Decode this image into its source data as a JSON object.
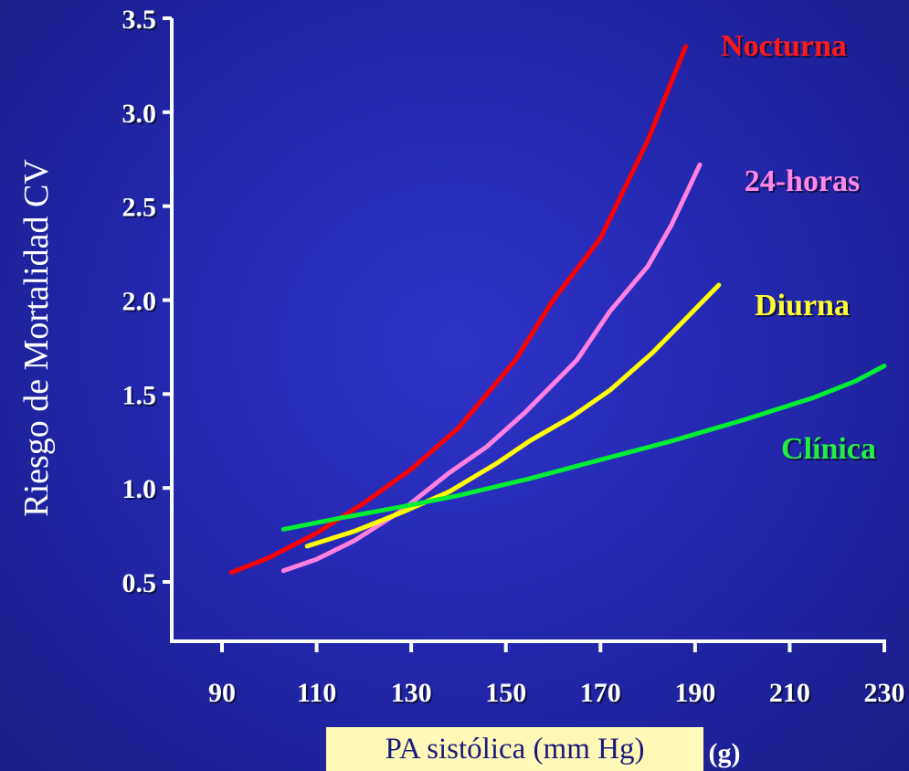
{
  "chart_data": {
    "type": "line",
    "title": "",
    "ylabel": "Riesgo de Mortalidad CV",
    "xlabel": "PA sistólica (mm Hg)",
    "xlim": [
      85,
      233
    ],
    "ylim": [
      0.25,
      3.5
    ],
    "x_ticks": [
      90,
      110,
      130,
      150,
      170,
      190,
      210,
      230
    ],
    "y_ticks": [
      0.5,
      1.0,
      1.5,
      2.0,
      2.5,
      3.0,
      3.5
    ],
    "y_tick_labels": [
      "0.5",
      "1.0",
      "1.5",
      "2.0",
      "2.5",
      "3.0",
      "3.5"
    ],
    "grid": false,
    "series": [
      {
        "name": "Nocturna",
        "color": "#ff0000",
        "label_color": "#ff1a1a",
        "x": [
          92,
          100,
          110,
          120,
          130,
          140,
          152,
          160,
          170,
          180,
          188
        ],
        "y": [
          0.55,
          0.63,
          0.76,
          0.92,
          1.1,
          1.32,
          1.68,
          2.0,
          2.33,
          2.85,
          3.35
        ]
      },
      {
        "name": "24-horas",
        "color": "#ff80e0",
        "label_color": "#ff88e6",
        "x": [
          103,
          110,
          118,
          128,
          138,
          146,
          154,
          165,
          172,
          180,
          185,
          191
        ],
        "y": [
          0.56,
          0.62,
          0.72,
          0.88,
          1.08,
          1.22,
          1.4,
          1.68,
          1.94,
          2.18,
          2.4,
          2.72
        ]
      },
      {
        "name": "Diurna",
        "color": "#ffff00",
        "label_color": "#ffff33",
        "x": [
          108,
          118,
          128,
          138,
          148,
          155,
          164,
          172,
          181,
          188,
          195
        ],
        "y": [
          0.69,
          0.77,
          0.87,
          0.98,
          1.13,
          1.25,
          1.38,
          1.52,
          1.72,
          1.9,
          2.08
        ]
      },
      {
        "name": "Clínica",
        "color": "#00ee33",
        "label_color": "#22ee44",
        "x": [
          103,
          115,
          128,
          140,
          155,
          170,
          185,
          200,
          215,
          224,
          230
        ],
        "y": [
          0.78,
          0.84,
          0.9,
          0.96,
          1.05,
          1.15,
          1.25,
          1.36,
          1.48,
          1.57,
          1.65
        ]
      }
    ],
    "hidden_xlabel_fragment": "(g)"
  }
}
